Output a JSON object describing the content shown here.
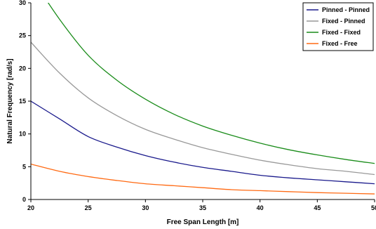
{
  "chart_data": {
    "type": "line",
    "title": "",
    "xlabel": "Free Span Length [m]",
    "ylabel": "Natural Frequency [rad/s]",
    "xlim": [
      20,
      50
    ],
    "ylim": [
      0,
      30
    ],
    "x_ticks": [
      20,
      25,
      30,
      35,
      40,
      45,
      50
    ],
    "y_ticks": [
      0,
      5,
      10,
      15,
      20,
      25,
      30
    ],
    "grid": false,
    "legend_position": "top-right",
    "x": [
      20,
      22.5,
      25,
      27.5,
      30,
      32.5,
      35,
      37.5,
      40,
      42.5,
      45,
      47.5,
      50
    ],
    "series": [
      {
        "name": "Pinned - Pinned",
        "color": "#1a1a8c",
        "values": [
          15.0,
          12.3,
          9.6,
          8.0,
          6.7,
          5.7,
          4.9,
          4.3,
          3.7,
          3.3,
          3.0,
          2.7,
          2.4
        ]
      },
      {
        "name": "Fixed - Pinned",
        "color": "#999999",
        "values": [
          24.0,
          19.3,
          15.5,
          12.8,
          10.7,
          9.2,
          7.9,
          6.9,
          6.0,
          5.3,
          4.7,
          4.3,
          3.8
        ]
      },
      {
        "name": "Fixed - Fixed",
        "color": "#1a8c1a",
        "values": [
          34.0,
          27.5,
          22.0,
          18.2,
          15.3,
          13.0,
          11.2,
          9.8,
          8.6,
          7.6,
          6.8,
          6.1,
          5.5
        ]
      },
      {
        "name": "Fixed - Free",
        "color": "#ff6a13",
        "values": [
          5.4,
          4.3,
          3.5,
          2.9,
          2.4,
          2.1,
          1.8,
          1.5,
          1.35,
          1.2,
          1.05,
          0.95,
          0.85
        ]
      }
    ]
  }
}
